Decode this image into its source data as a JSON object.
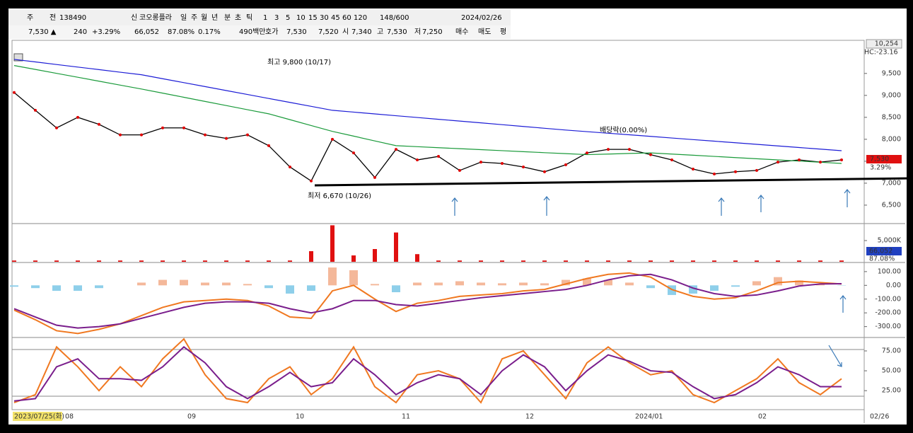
{
  "toolbar": {
    "items": [
      "주",
      "전",
      "138490",
      "신",
      "코오롱플라",
      "일",
      "주",
      "월",
      "년",
      "분",
      "초",
      "틱",
      "1",
      "3",
      "5",
      "10",
      "15",
      "30",
      "45",
      "60",
      "120",
      "148/600",
      "2024/02/26"
    ]
  },
  "quote": {
    "items": [
      "7,530 ▲",
      "240",
      "+3.29%",
      "66,052",
      "87.08%",
      "0.17%",
      "490백만",
      "호가",
      "7,530",
      "7,520",
      "시",
      "7,340",
      "고",
      "7,530",
      "저",
      "7,250",
      "매수",
      "매도",
      "평"
    ]
  },
  "price_panel": {
    "ylim": [
      6080,
      10254
    ],
    "yticks": [
      {
        "value": 9500,
        "label": "9,500"
      },
      {
        "value": 9000,
        "label": "9,000"
      },
      {
        "value": 8500,
        "label": "8,500"
      },
      {
        "value": 8000,
        "label": "8,000"
      },
      {
        "value": 7500,
        "label": "7,500"
      },
      {
        "value": 7000,
        "label": "7,000"
      },
      {
        "value": 6500,
        "label": "6,500"
      }
    ],
    "top_label": "10,254",
    "hc_label": "HC:-23.16",
    "last_label": "7,530",
    "change_label": "3.29%",
    "annotations": [
      "최고 9,800 (10/17)",
      "최저 6,670 (10/26)",
      "배당락(0.00%)"
    ],
    "series": [
      {
        "name": "close",
        "color": "#000000",
        "values": [
          9065,
          8660,
          8260,
          8500,
          8340,
          8100,
          8100,
          8260,
          8260,
          8100,
          8020,
          8100,
          7855,
          7370,
          7050,
          8000,
          7690,
          7130,
          7770,
          7530,
          7610,
          7290,
          7480,
          7450,
          7370,
          7260,
          7420,
          7690,
          7770,
          7770,
          7650,
          7530,
          7320,
          7210,
          7260,
          7290,
          7480,
          7530,
          7480,
          7530
        ]
      },
      {
        "name": "ma-long",
        "color": "#1c1cd6",
        "values": [
          9820,
          9762,
          9703,
          9645,
          9587,
          9528,
          9470,
          9380,
          9290,
          9200,
          9110,
          9020,
          8930,
          8840,
          8750,
          8660,
          8619,
          8578,
          8537,
          8496,
          8455,
          8415,
          8374,
          8333,
          8292,
          8251,
          8210,
          8174,
          8138,
          8102,
          8066,
          8029,
          7993,
          7957,
          7921,
          7885,
          7849,
          7812,
          7776,
          7740
        ]
      },
      {
        "name": "ma-mid",
        "color": "#1a9a3a",
        "values": [
          9680,
          9591,
          9502,
          9413,
          9323,
          9234,
          9145,
          9051,
          8957,
          8862,
          8768,
          8674,
          8580,
          8447,
          8313,
          8180,
          8072,
          7963,
          7855,
          7832,
          7809,
          7786,
          7764,
          7741,
          7718,
          7695,
          7673,
          7650,
          7663,
          7677,
          7690,
          7663,
          7637,
          7610,
          7583,
          7557,
          7530,
          7503,
          7477,
          7450
        ]
      }
    ]
  },
  "volume_panel": {
    "ylim": [
      0,
      8670
    ],
    "yticks": [
      {
        "value": 5000,
        "label": "5,000K"
      }
    ],
    "last_label": "66,052",
    "ratio_label": "87.08%",
    "values": [
      300,
      300,
      300,
      300,
      300,
      300,
      300,
      300,
      300,
      300,
      300,
      300,
      300,
      300,
      2500,
      8600,
      1500,
      3000,
      6900,
      1800,
      300,
      300,
      300,
      300,
      300,
      300,
      300,
      300,
      300,
      300,
      300,
      300,
      300,
      300,
      300,
      300,
      300,
      300,
      300,
      300
    ]
  },
  "macd_panel": {
    "ylim": [
      -374,
      156
    ],
    "yticks": [
      {
        "value": 100,
        "label": "100.00"
      },
      {
        "value": 0,
        "label": "0.00"
      },
      {
        "value": -100,
        "label": "-100.00"
      },
      {
        "value": -200,
        "label": "-200.00"
      },
      {
        "value": -300,
        "label": "-300.00"
      }
    ],
    "histogram": [
      -10,
      -20,
      -40,
      -40,
      -20,
      0,
      20,
      40,
      40,
      20,
      20,
      10,
      -20,
      -60,
      -40,
      130,
      110,
      10,
      -50,
      20,
      20,
      30,
      20,
      15,
      20,
      15,
      40,
      50,
      40,
      20,
      -20,
      -70,
      -60,
      -40,
      -10,
      30,
      60,
      35,
      10,
      -2
    ],
    "series": [
      {
        "name": "macd",
        "color": "#f07820",
        "values": [
          -180,
          -250,
          -330,
          -350,
          -320,
          -280,
          -220,
          -160,
          -120,
          -110,
          -100,
          -110,
          -150,
          -230,
          -240,
          -40,
          0,
          -100,
          -190,
          -130,
          -110,
          -80,
          -70,
          -60,
          -40,
          -30,
          10,
          50,
          80,
          90,
          60,
          -30,
          -80,
          -100,
          -90,
          -40,
          20,
          30,
          20,
          10
        ]
      },
      {
        "name": "signal",
        "color": "#7a1e8c",
        "values": [
          -170,
          -230,
          -290,
          -310,
          -300,
          -280,
          -240,
          -200,
          -160,
          -130,
          -120,
          -120,
          -130,
          -170,
          -200,
          -170,
          -110,
          -110,
          -140,
          -150,
          -130,
          -110,
          -90,
          -75,
          -60,
          -45,
          -30,
          0,
          40,
          70,
          80,
          40,
          -20,
          -60,
          -80,
          -70,
          -40,
          -5,
          10,
          12
        ]
      }
    ]
  },
  "stoch_panel": {
    "ylim": [
      2,
      91
    ],
    "yticks": [
      {
        "value": 75,
        "label": "75.00"
      },
      {
        "value": 50,
        "label": "50.00"
      },
      {
        "value": 25,
        "label": "25.00"
      }
    ],
    "series": [
      {
        "name": "k",
        "color": "#f07820",
        "values": [
          10,
          20,
          80,
          55,
          25,
          55,
          30,
          65,
          90,
          45,
          15,
          10,
          40,
          55,
          20,
          40,
          80,
          30,
          10,
          45,
          50,
          40,
          10,
          65,
          75,
          45,
          15,
          60,
          80,
          60,
          45,
          50,
          20,
          10,
          25,
          40,
          65,
          35,
          20,
          40
        ]
      },
      {
        "name": "d",
        "color": "#7a1e8c",
        "values": [
          12,
          15,
          55,
          65,
          40,
          40,
          38,
          55,
          80,
          60,
          30,
          15,
          30,
          48,
          30,
          35,
          65,
          45,
          20,
          35,
          45,
          40,
          20,
          50,
          70,
          55,
          25,
          50,
          70,
          62,
          50,
          48,
          30,
          15,
          20,
          35,
          55,
          45,
          30,
          30
        ]
      }
    ]
  },
  "x_axis": {
    "labels": [
      "2023/07/25(화)",
      "08",
      "09",
      "10",
      "11",
      "12",
      "2024/01",
      "02",
      "02/26"
    ]
  }
}
